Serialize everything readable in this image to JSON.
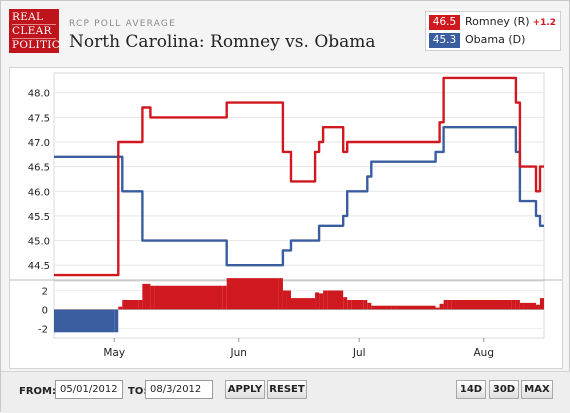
{
  "header": {
    "logo_lines": [
      "REAL",
      "CLEAR",
      "POLITICS"
    ],
    "subtitle": "RCP POLL AVERAGE",
    "title": "North Carolina: Romney vs. Obama"
  },
  "legend": [
    {
      "value": "46.5",
      "name": "Romney (R)",
      "change": "+1.2",
      "color": "#d0181f"
    },
    {
      "value": "45.3",
      "name": "Obama (D)",
      "change": "",
      "color": "#3a5da0"
    }
  ],
  "controls": {
    "from_label": "FROM:",
    "from_value": "05/01/2012",
    "to_label": "TO:",
    "to_value": "08/3/2012",
    "apply_label": "APPLY",
    "reset_label": "RESET",
    "range_buttons": [
      "14D",
      "30D",
      "MAX"
    ]
  },
  "chart_data": {
    "type": "line",
    "title": "North Carolina: Romney vs. Obama",
    "xlabel": "",
    "ylabel": "",
    "x_ticks": [
      "May",
      "Jun",
      "Jul",
      "Aug"
    ],
    "y_ticks": [
      "44.5",
      "45.0",
      "45.5",
      "46.0",
      "46.5",
      "47.0",
      "47.5",
      "48.0"
    ],
    "ylim": [
      44.2,
      48.4
    ],
    "spread_ticks": [
      "2",
      "0",
      "-2"
    ],
    "spread_ylim": [
      -3,
      3
    ],
    "grid": true,
    "legend_position": "top-right",
    "x": [
      "2012-04-16",
      "2012-05-01",
      "2012-05-02",
      "2012-05-03",
      "2012-05-07",
      "2012-05-08",
      "2012-05-10",
      "2012-05-11",
      "2012-05-28",
      "2012-05-29",
      "2012-06-11",
      "2012-06-12",
      "2012-06-13",
      "2012-06-14",
      "2012-06-15",
      "2012-06-20",
      "2012-06-21",
      "2012-06-22",
      "2012-06-23",
      "2012-06-27",
      "2012-06-28",
      "2012-06-29",
      "2012-07-02",
      "2012-07-03",
      "2012-07-04",
      "2012-07-09",
      "2012-07-10",
      "2012-07-20",
      "2012-07-21",
      "2012-07-22",
      "2012-07-23",
      "2012-07-24",
      "2012-08-08",
      "2012-08-09",
      "2012-08-10",
      "2012-08-11",
      "2012-08-14",
      "2012-08-15",
      "2012-08-16"
    ],
    "series": [
      {
        "name": "Romney (R)",
        "color": "#d0181f",
        "values": [
          44.3,
          44.3,
          47.0,
          47.0,
          47.0,
          47.7,
          47.5,
          47.5,
          47.5,
          47.8,
          47.8,
          46.8,
          46.8,
          46.2,
          46.2,
          46.8,
          47.0,
          47.3,
          47.3,
          46.8,
          47.0,
          47.0,
          47.0,
          47.0,
          47.0,
          47.0,
          47.0,
          47.0,
          47.4,
          48.3,
          48.3,
          48.3,
          48.3,
          47.8,
          46.5,
          46.5,
          46.0,
          46.5,
          46.5
        ]
      },
      {
        "name": "Obama (D)",
        "color": "#3a5da0",
        "values": [
          46.7,
          46.7,
          46.7,
          46.0,
          46.0,
          45.0,
          45.0,
          45.0,
          45.0,
          44.5,
          44.5,
          44.8,
          44.8,
          45.0,
          45.0,
          45.0,
          45.3,
          45.3,
          45.3,
          45.5,
          46.0,
          46.0,
          46.0,
          46.3,
          46.6,
          46.6,
          46.6,
          46.8,
          46.8,
          47.3,
          47.3,
          47.3,
          47.3,
          46.8,
          45.8,
          45.8,
          45.5,
          45.3,
          45.3
        ]
      }
    ]
  }
}
